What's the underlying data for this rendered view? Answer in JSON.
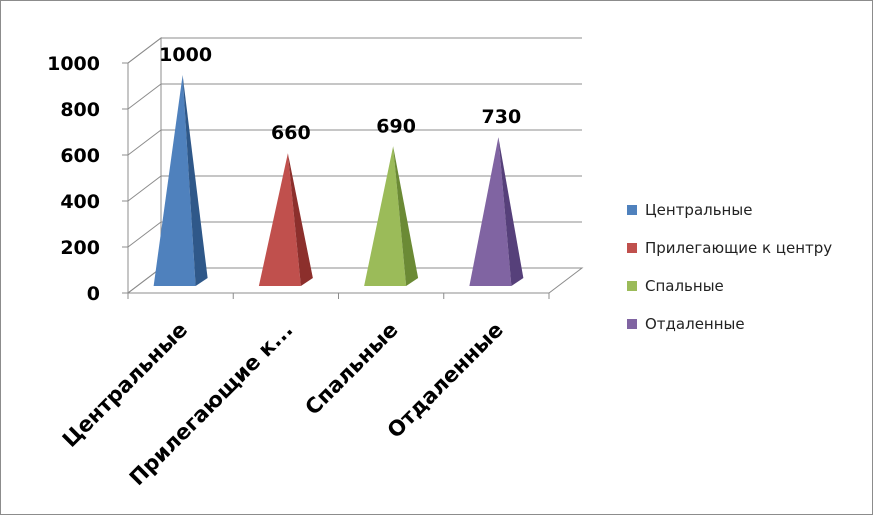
{
  "chart_data": {
    "type": "bar",
    "style": "3d-pyramid",
    "categories": [
      "Центральные",
      "Прилегающие к центру",
      "Спальные",
      "Отдаленные"
    ],
    "category_tick_labels": [
      "Центральные",
      "Прилегающие к...",
      "Спальные",
      "Отдаленные"
    ],
    "values": [
      1000,
      660,
      690,
      730
    ],
    "value_labels": [
      "1000",
      "660",
      "690",
      "730"
    ],
    "yticks": [
      "0",
      "200",
      "400",
      "600",
      "800",
      "1000"
    ],
    "ylim": [
      0,
      1000
    ],
    "grid": true,
    "legend": "right",
    "colors": [
      "#4f81bd",
      "#c0504d",
      "#9bbb59",
      "#8064a2"
    ],
    "shade_colors": [
      "#2f5889",
      "#8c2f2c",
      "#6b8a35",
      "#56407a"
    ]
  }
}
